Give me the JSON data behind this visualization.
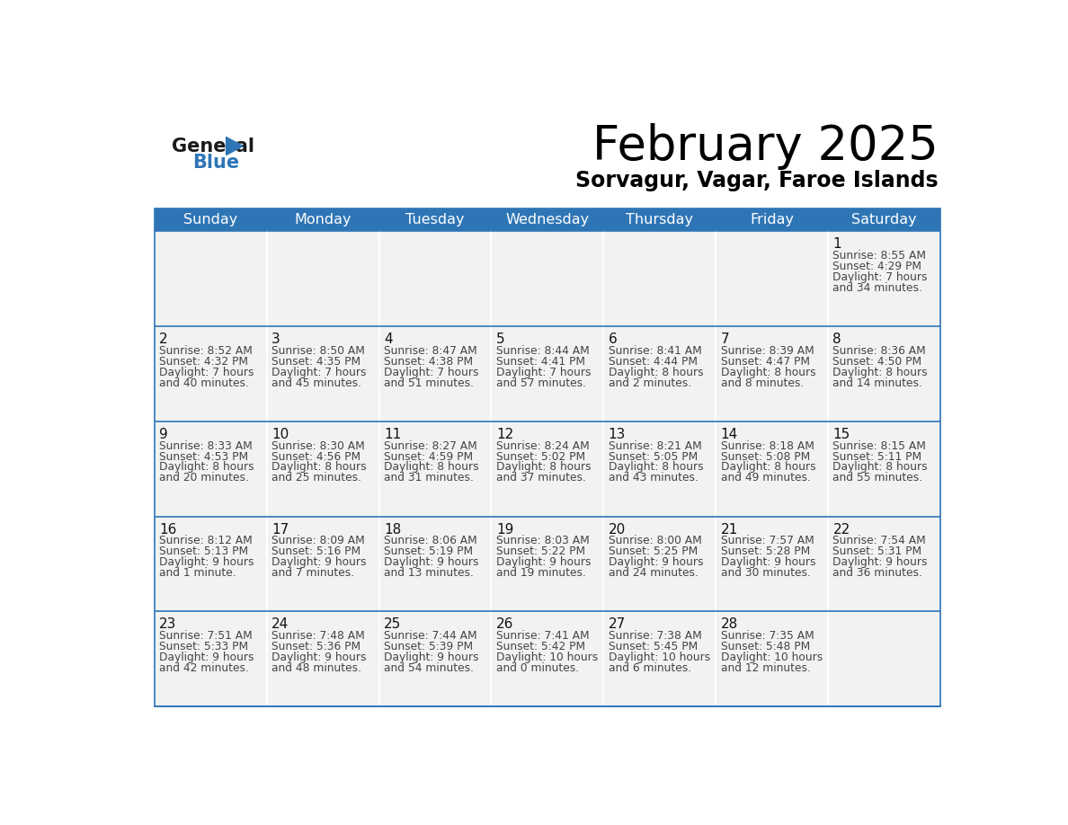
{
  "title": "February 2025",
  "subtitle": "Sorvagur, Vagar, Faroe Islands",
  "header_bg": "#2E75B6",
  "header_text_color": "#FFFFFF",
  "cell_bg": "#F2F2F2",
  "day_headers": [
    "Sunday",
    "Monday",
    "Tuesday",
    "Wednesday",
    "Thursday",
    "Friday",
    "Saturday"
  ],
  "title_color": "#000000",
  "subtitle_color": "#000000",
  "info_color": "#444444",
  "border_color": "#2E75B6",
  "calendar_data": [
    [
      null,
      null,
      null,
      null,
      null,
      null,
      {
        "day": "1",
        "sunrise": "8:55 AM",
        "sunset": "4:29 PM",
        "daylight1": "Daylight: 7 hours",
        "daylight2": "and 34 minutes."
      }
    ],
    [
      {
        "day": "2",
        "sunrise": "8:52 AM",
        "sunset": "4:32 PM",
        "daylight1": "Daylight: 7 hours",
        "daylight2": "and 40 minutes."
      },
      {
        "day": "3",
        "sunrise": "8:50 AM",
        "sunset": "4:35 PM",
        "daylight1": "Daylight: 7 hours",
        "daylight2": "and 45 minutes."
      },
      {
        "day": "4",
        "sunrise": "8:47 AM",
        "sunset": "4:38 PM",
        "daylight1": "Daylight: 7 hours",
        "daylight2": "and 51 minutes."
      },
      {
        "day": "5",
        "sunrise": "8:44 AM",
        "sunset": "4:41 PM",
        "daylight1": "Daylight: 7 hours",
        "daylight2": "and 57 minutes."
      },
      {
        "day": "6",
        "sunrise": "8:41 AM",
        "sunset": "4:44 PM",
        "daylight1": "Daylight: 8 hours",
        "daylight2": "and 2 minutes."
      },
      {
        "day": "7",
        "sunrise": "8:39 AM",
        "sunset": "4:47 PM",
        "daylight1": "Daylight: 8 hours",
        "daylight2": "and 8 minutes."
      },
      {
        "day": "8",
        "sunrise": "8:36 AM",
        "sunset": "4:50 PM",
        "daylight1": "Daylight: 8 hours",
        "daylight2": "and 14 minutes."
      }
    ],
    [
      {
        "day": "9",
        "sunrise": "8:33 AM",
        "sunset": "4:53 PM",
        "daylight1": "Daylight: 8 hours",
        "daylight2": "and 20 minutes."
      },
      {
        "day": "10",
        "sunrise": "8:30 AM",
        "sunset": "4:56 PM",
        "daylight1": "Daylight: 8 hours",
        "daylight2": "and 25 minutes."
      },
      {
        "day": "11",
        "sunrise": "8:27 AM",
        "sunset": "4:59 PM",
        "daylight1": "Daylight: 8 hours",
        "daylight2": "and 31 minutes."
      },
      {
        "day": "12",
        "sunrise": "8:24 AM",
        "sunset": "5:02 PM",
        "daylight1": "Daylight: 8 hours",
        "daylight2": "and 37 minutes."
      },
      {
        "day": "13",
        "sunrise": "8:21 AM",
        "sunset": "5:05 PM",
        "daylight1": "Daylight: 8 hours",
        "daylight2": "and 43 minutes."
      },
      {
        "day": "14",
        "sunrise": "8:18 AM",
        "sunset": "5:08 PM",
        "daylight1": "Daylight: 8 hours",
        "daylight2": "and 49 minutes."
      },
      {
        "day": "15",
        "sunrise": "8:15 AM",
        "sunset": "5:11 PM",
        "daylight1": "Daylight: 8 hours",
        "daylight2": "and 55 minutes."
      }
    ],
    [
      {
        "day": "16",
        "sunrise": "8:12 AM",
        "sunset": "5:13 PM",
        "daylight1": "Daylight: 9 hours",
        "daylight2": "and 1 minute."
      },
      {
        "day": "17",
        "sunrise": "8:09 AM",
        "sunset": "5:16 PM",
        "daylight1": "Daylight: 9 hours",
        "daylight2": "and 7 minutes."
      },
      {
        "day": "18",
        "sunrise": "8:06 AM",
        "sunset": "5:19 PM",
        "daylight1": "Daylight: 9 hours",
        "daylight2": "and 13 minutes."
      },
      {
        "day": "19",
        "sunrise": "8:03 AM",
        "sunset": "5:22 PM",
        "daylight1": "Daylight: 9 hours",
        "daylight2": "and 19 minutes."
      },
      {
        "day": "20",
        "sunrise": "8:00 AM",
        "sunset": "5:25 PM",
        "daylight1": "Daylight: 9 hours",
        "daylight2": "and 24 minutes."
      },
      {
        "day": "21",
        "sunrise": "7:57 AM",
        "sunset": "5:28 PM",
        "daylight1": "Daylight: 9 hours",
        "daylight2": "and 30 minutes."
      },
      {
        "day": "22",
        "sunrise": "7:54 AM",
        "sunset": "5:31 PM",
        "daylight1": "Daylight: 9 hours",
        "daylight2": "and 36 minutes."
      }
    ],
    [
      {
        "day": "23",
        "sunrise": "7:51 AM",
        "sunset": "5:33 PM",
        "daylight1": "Daylight: 9 hours",
        "daylight2": "and 42 minutes."
      },
      {
        "day": "24",
        "sunrise": "7:48 AM",
        "sunset": "5:36 PM",
        "daylight1": "Daylight: 9 hours",
        "daylight2": "and 48 minutes."
      },
      {
        "day": "25",
        "sunrise": "7:44 AM",
        "sunset": "5:39 PM",
        "daylight1": "Daylight: 9 hours",
        "daylight2": "and 54 minutes."
      },
      {
        "day": "26",
        "sunrise": "7:41 AM",
        "sunset": "5:42 PM",
        "daylight1": "Daylight: 10 hours",
        "daylight2": "and 0 minutes."
      },
      {
        "day": "27",
        "sunrise": "7:38 AM",
        "sunset": "5:45 PM",
        "daylight1": "Daylight: 10 hours",
        "daylight2": "and 6 minutes."
      },
      {
        "day": "28",
        "sunrise": "7:35 AM",
        "sunset": "5:48 PM",
        "daylight1": "Daylight: 10 hours",
        "daylight2": "and 12 minutes."
      },
      null
    ]
  ]
}
